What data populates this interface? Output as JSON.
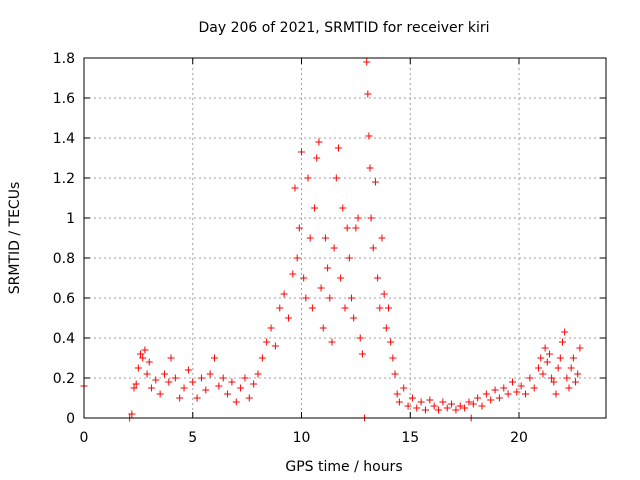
{
  "chart_data": {
    "type": "scatter",
    "title": "Day 206 of 2021, SRMTID for receiver kiri",
    "xlabel": "GPS time / hours",
    "ylabel": "SRMTID / TECUs",
    "xlim": [
      0,
      24
    ],
    "ylim": [
      0,
      1.8
    ],
    "xticks": [
      0,
      5,
      10,
      15,
      20
    ],
    "xtick_labels": [
      "0",
      "5",
      "10",
      "15",
      "20"
    ],
    "yticks": [
      0,
      0.2,
      0.4,
      0.6,
      0.8,
      1.0,
      1.2,
      1.4,
      1.6,
      1.8
    ],
    "ytick_labels": [
      "0",
      "0.2",
      "0.4",
      "0.6",
      "0.8",
      "1",
      "1.2",
      "1.4",
      "1.6",
      "1.8"
    ],
    "grid": true,
    "marker": "+",
    "color": "#ff0000",
    "series": [
      {
        "name": "kiri",
        "points": [
          [
            0.0,
            0.16
          ],
          [
            2.1,
            0.0
          ],
          [
            2.2,
            0.02
          ],
          [
            2.3,
            0.15
          ],
          [
            2.4,
            0.17
          ],
          [
            2.5,
            0.25
          ],
          [
            2.6,
            0.32
          ],
          [
            2.7,
            0.3
          ],
          [
            2.8,
            0.34
          ],
          [
            2.9,
            0.22
          ],
          [
            3.0,
            0.28
          ],
          [
            3.1,
            0.15
          ],
          [
            3.3,
            0.19
          ],
          [
            3.5,
            0.12
          ],
          [
            3.7,
            0.22
          ],
          [
            3.9,
            0.18
          ],
          [
            4.0,
            0.3
          ],
          [
            4.2,
            0.2
          ],
          [
            4.4,
            0.1
          ],
          [
            4.6,
            0.15
          ],
          [
            4.8,
            0.24
          ],
          [
            5.0,
            0.18
          ],
          [
            5.2,
            0.1
          ],
          [
            5.4,
            0.2
          ],
          [
            5.6,
            0.14
          ],
          [
            5.8,
            0.22
          ],
          [
            6.0,
            0.3
          ],
          [
            6.2,
            0.16
          ],
          [
            6.4,
            0.2
          ],
          [
            6.6,
            0.12
          ],
          [
            6.8,
            0.18
          ],
          [
            7.0,
            0.08
          ],
          [
            7.2,
            0.15
          ],
          [
            7.4,
            0.2
          ],
          [
            7.6,
            0.1
          ],
          [
            7.8,
            0.17
          ],
          [
            8.0,
            0.22
          ],
          [
            8.2,
            0.3
          ],
          [
            8.4,
            0.38
          ],
          [
            8.6,
            0.45
          ],
          [
            8.8,
            0.36
          ],
          [
            9.0,
            0.55
          ],
          [
            9.2,
            0.62
          ],
          [
            9.4,
            0.5
          ],
          [
            9.6,
            0.72
          ],
          [
            9.7,
            1.15
          ],
          [
            9.8,
            0.8
          ],
          [
            9.9,
            0.95
          ],
          [
            10.0,
            1.33
          ],
          [
            10.1,
            0.7
          ],
          [
            10.2,
            0.6
          ],
          [
            10.3,
            1.2
          ],
          [
            10.4,
            0.9
          ],
          [
            10.5,
            0.55
          ],
          [
            10.6,
            1.05
          ],
          [
            10.7,
            1.3
          ],
          [
            10.8,
            1.38
          ],
          [
            10.9,
            0.65
          ],
          [
            11.0,
            0.45
          ],
          [
            11.1,
            0.9
          ],
          [
            11.2,
            0.75
          ],
          [
            11.3,
            0.6
          ],
          [
            11.4,
            0.38
          ],
          [
            11.5,
            0.85
          ],
          [
            11.6,
            1.2
          ],
          [
            11.7,
            1.35
          ],
          [
            11.8,
            0.7
          ],
          [
            11.9,
            1.05
          ],
          [
            12.0,
            0.55
          ],
          [
            12.1,
            0.95
          ],
          [
            12.2,
            0.8
          ],
          [
            12.3,
            0.6
          ],
          [
            12.4,
            0.5
          ],
          [
            12.5,
            0.95
          ],
          [
            12.6,
            1.0
          ],
          [
            12.7,
            0.4
          ],
          [
            12.8,
            0.32
          ],
          [
            12.9,
            0.0
          ],
          [
            13.0,
            1.78
          ],
          [
            13.05,
            1.62
          ],
          [
            13.1,
            1.41
          ],
          [
            13.15,
            1.25
          ],
          [
            13.2,
            1.0
          ],
          [
            13.3,
            0.85
          ],
          [
            13.4,
            1.18
          ],
          [
            13.5,
            0.7
          ],
          [
            13.6,
            0.55
          ],
          [
            13.7,
            0.9
          ],
          [
            13.8,
            0.62
          ],
          [
            13.9,
            0.45
          ],
          [
            14.0,
            0.55
          ],
          [
            14.1,
            0.38
          ],
          [
            14.2,
            0.3
          ],
          [
            14.3,
            0.22
          ],
          [
            14.4,
            0.12
          ],
          [
            14.5,
            0.08
          ],
          [
            14.7,
            0.15
          ],
          [
            14.9,
            0.06
          ],
          [
            15.1,
            0.1
          ],
          [
            15.3,
            0.05
          ],
          [
            15.5,
            0.08
          ],
          [
            15.7,
            0.04
          ],
          [
            15.9,
            0.09
          ],
          [
            16.1,
            0.06
          ],
          [
            16.3,
            0.04
          ],
          [
            16.5,
            0.08
          ],
          [
            16.7,
            0.05
          ],
          [
            16.9,
            0.07
          ],
          [
            17.1,
            0.04
          ],
          [
            17.3,
            0.06
          ],
          [
            17.5,
            0.05
          ],
          [
            17.7,
            0.08
          ],
          [
            17.8,
            0.0
          ],
          [
            17.9,
            0.07
          ],
          [
            18.1,
            0.1
          ],
          [
            18.3,
            0.06
          ],
          [
            18.5,
            0.12
          ],
          [
            18.7,
            0.09
          ],
          [
            18.9,
            0.14
          ],
          [
            19.1,
            0.1
          ],
          [
            19.3,
            0.15
          ],
          [
            19.5,
            0.12
          ],
          [
            19.7,
            0.18
          ],
          [
            19.9,
            0.13
          ],
          [
            20.1,
            0.16
          ],
          [
            20.3,
            0.12
          ],
          [
            20.5,
            0.2
          ],
          [
            20.7,
            0.15
          ],
          [
            20.9,
            0.25
          ],
          [
            21.0,
            0.3
          ],
          [
            21.1,
            0.22
          ],
          [
            21.2,
            0.35
          ],
          [
            21.3,
            0.28
          ],
          [
            21.4,
            0.32
          ],
          [
            21.5,
            0.2
          ],
          [
            21.6,
            0.18
          ],
          [
            21.7,
            0.12
          ],
          [
            21.8,
            0.25
          ],
          [
            21.9,
            0.3
          ],
          [
            22.0,
            0.38
          ],
          [
            22.1,
            0.43
          ],
          [
            22.2,
            0.2
          ],
          [
            22.3,
            0.15
          ],
          [
            22.4,
            0.25
          ],
          [
            22.5,
            0.3
          ],
          [
            22.6,
            0.18
          ],
          [
            22.7,
            0.22
          ],
          [
            22.8,
            0.35
          ]
        ]
      }
    ]
  }
}
